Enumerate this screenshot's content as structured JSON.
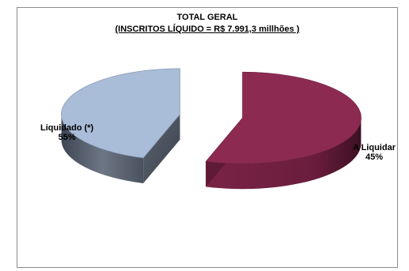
{
  "chart_data": {
    "type": "pie",
    "title": "TOTAL GERAL",
    "subtitle": "(INSCRITOS LÍQUIDO = R$ 7.991,3 millhões )",
    "style": "3d-exploded",
    "slices": [
      {
        "label": "Liquidado (*)",
        "percent_label": "55%",
        "value": 55,
        "color": "#8c2a52"
      },
      {
        "label": "A Liquidar",
        "percent_label": "45%",
        "value": 45,
        "color": "#a9bcd8"
      }
    ]
  }
}
